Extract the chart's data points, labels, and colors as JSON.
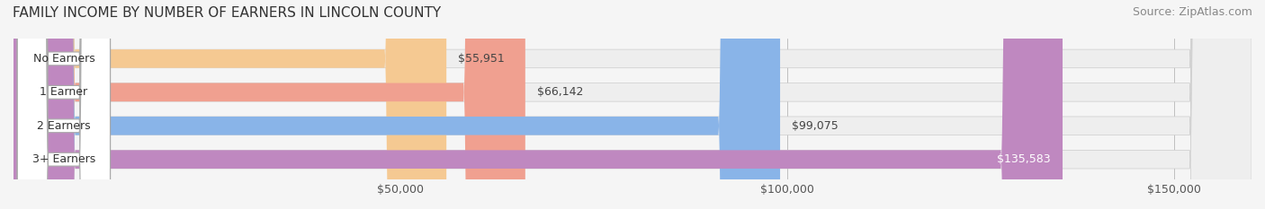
{
  "title": "FAMILY INCOME BY NUMBER OF EARNERS IN LINCOLN COUNTY",
  "source": "Source: ZipAtlas.com",
  "categories": [
    "No Earners",
    "1 Earner",
    "2 Earners",
    "3+ Earners"
  ],
  "values": [
    55951,
    66142,
    99075,
    135583
  ],
  "bar_colors": [
    "#f5c992",
    "#f0a090",
    "#89b4e8",
    "#bf88c0"
  ],
  "bar_bg_color": "#eeeeee",
  "label_colors": [
    "#555555",
    "#555555",
    "#555555",
    "#ffffff"
  ],
  "x_max": 160000,
  "x_ticks": [
    50000,
    100000,
    150000
  ],
  "x_tick_labels": [
    "$50,000",
    "$100,000",
    "$150,000"
  ],
  "background_color": "#f5f5f5",
  "bar_height": 0.55,
  "title_fontsize": 11,
  "source_fontsize": 9,
  "label_fontsize": 9,
  "tick_fontsize": 9
}
